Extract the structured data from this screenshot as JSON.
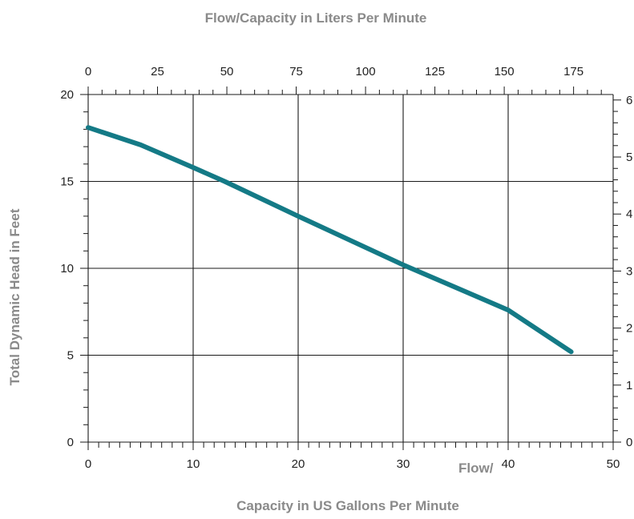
{
  "chart_data": {
    "type": "line",
    "title": "",
    "top_axis_title": "Flow/Capacity in Liters Per Minute",
    "left_axis_title": "Total Dynamic Head in Feet",
    "bottom_axis_title": "Capacity in US Gallons Per Minute",
    "bottom_axis_prefix": "Flow/",
    "xlim": [
      0,
      50
    ],
    "ylim": [
      0,
      20
    ],
    "top_xlim": [
      0,
      189.27
    ],
    "right_ylim": [
      0,
      6.096
    ],
    "x_ticks": [
      0,
      10,
      20,
      30,
      40,
      50
    ],
    "y_ticks": [
      0,
      5,
      10,
      15,
      20
    ],
    "top_ticks": [
      0,
      25,
      50,
      75,
      100,
      125,
      150,
      175
    ],
    "right_ticks": [
      0,
      1,
      2,
      3,
      4,
      5,
      6
    ],
    "grid": true,
    "series": [
      {
        "color": "#147a86",
        "x": [
          0,
          5,
          10,
          13,
          20,
          25,
          30,
          35,
          40,
          46
        ],
        "y": [
          18.1,
          17.1,
          15.8,
          15.0,
          13.0,
          11.6,
          10.2,
          8.9,
          7.6,
          5.2
        ]
      }
    ]
  }
}
